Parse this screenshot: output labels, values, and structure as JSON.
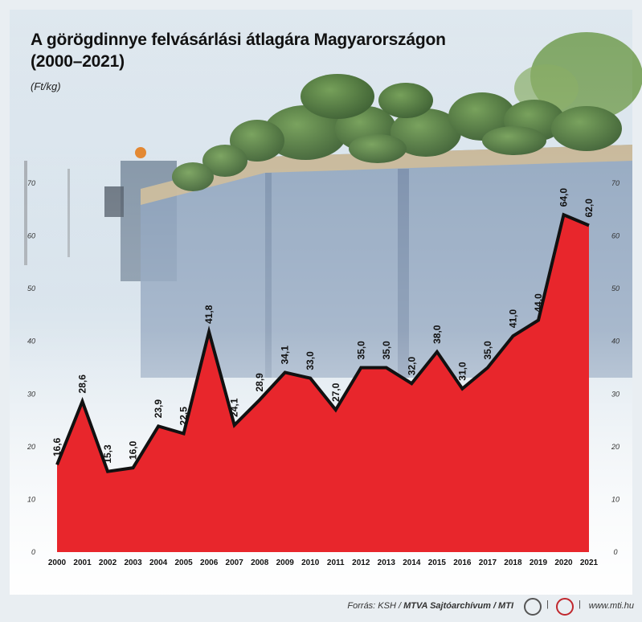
{
  "title_line1": "A görögdinnye felvásárlási átlagára Magyarországon",
  "title_line2": "(2000–2021)",
  "unit_label": "(Ft/kg)",
  "footer": {
    "source_prefix": "Forrás: KSH / ",
    "source_bold": "MTVA Sajtóarchívum / MTI",
    "separator": "|",
    "url": "www.mti.hu"
  },
  "colors": {
    "fill": "#e8262c",
    "line": "#111111",
    "sky": "#c9dbe8",
    "truck": "#6f87a6",
    "melon": "#3f6a2f"
  },
  "chart_data": {
    "type": "area",
    "title": "A görögdinnye felvásárlási átlagára Magyarországon (2000–2021)",
    "ylabel": "(Ft/kg)",
    "xlabel": "",
    "categories": [
      "2000",
      "2001",
      "2002",
      "2003",
      "2004",
      "2005",
      "2006",
      "2007",
      "2008",
      "2009",
      "2010",
      "2011",
      "2012",
      "2013",
      "2014",
      "2015",
      "2016",
      "2017",
      "2018",
      "2019",
      "2020",
      "2021"
    ],
    "values": [
      16.6,
      28.6,
      15.3,
      16.0,
      23.9,
      22.5,
      41.8,
      24.1,
      28.9,
      34.1,
      33.0,
      27.0,
      35.0,
      35.0,
      32.0,
      38.0,
      31.0,
      35.0,
      41.0,
      44.0,
      64.0,
      62.0
    ],
    "value_labels": [
      "16,6",
      "28,6",
      "15,3",
      "16,0",
      "23,9",
      "22,5",
      "41,8",
      "24,1",
      "28,9",
      "34,1",
      "33,0",
      "27,0",
      "35,0",
      "35,0",
      "32,0",
      "38,0",
      "31,0",
      "35,0",
      "41,0",
      "44,0",
      "64,0",
      "62,0"
    ],
    "ylim": [
      0,
      70
    ],
    "yticks": [
      "0",
      "10",
      "20",
      "30",
      "40",
      "50",
      "60",
      "70"
    ],
    "y_axis_both_sides": true,
    "grid": false,
    "legend": "none"
  }
}
